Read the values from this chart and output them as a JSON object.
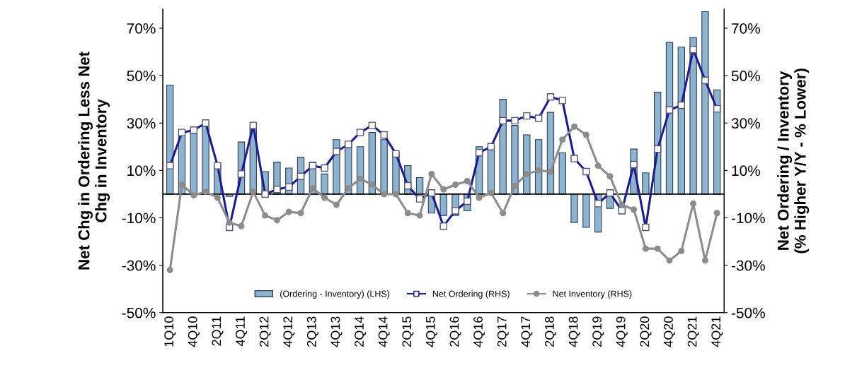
{
  "chart_data": {
    "type": "bar",
    "ylabel": "Net Chg in Ordering Less Net\nChg in Inventory",
    "y2label": "Net Ordering / Inventory\n(% Higher Y/Y - % Lower)",
    "categories": [
      "1Q10",
      null,
      "4Q10",
      null,
      "2Q11",
      null,
      "4Q11",
      null,
      "2Q12",
      null,
      "4Q12",
      null,
      "2Q13",
      null,
      "4Q13",
      null,
      "2Q14",
      null,
      "4Q14",
      null,
      "2Q15",
      null,
      "4Q15",
      null,
      "2Q16",
      null,
      "4Q16",
      null,
      "2Q17",
      null,
      "4Q17",
      null,
      "2Q18",
      null,
      "4Q18",
      null,
      "2Q19",
      null,
      "4Q19",
      null,
      "2Q20",
      null,
      "4Q20",
      null,
      "2Q21",
      null,
      "4Q21"
    ],
    "series": [
      {
        "name": "(Ordering - Inventory) (LHS)",
        "axis": "y",
        "color": "#8fb3cf",
        "values": [
          46,
          27,
          27,
          30,
          12,
          -1,
          22,
          28,
          9.5,
          13.5,
          11,
          15.5,
          13.5,
          8.5,
          23,
          22,
          20,
          26,
          23,
          17.5,
          12,
          7,
          -8,
          -9,
          -9,
          -7,
          20,
          20,
          40,
          29,
          25,
          23,
          34.5,
          17.5,
          -12,
          -14,
          -16,
          -6,
          null,
          19,
          9,
          43,
          64,
          62,
          66,
          77,
          44
        ]
      },
      {
        "name": "Net Ordering (RHS)",
        "type": "line",
        "axis": "y2",
        "color": "#1c1c8a",
        "marker": "square",
        "values": [
          12,
          26,
          27,
          30,
          12,
          -14,
          8.5,
          29,
          0,
          2,
          3,
          7.5,
          12,
          11,
          18,
          21,
          26,
          29,
          25,
          17,
          3.5,
          -2,
          0.5,
          -13.5,
          -7,
          -3,
          17.5,
          20,
          31,
          31,
          33,
          32,
          41,
          39.5,
          15,
          9.5,
          -4,
          0.5,
          -7,
          12.5,
          -14,
          19,
          35.5,
          37.5,
          61,
          48,
          36
        ]
      },
      {
        "name": "Net Inventory (RHS)",
        "type": "line",
        "axis": "y2",
        "color": "#8c8c8c",
        "marker": "circle",
        "values": [
          -32,
          4,
          -0.5,
          1,
          -1.5,
          -12,
          -13.5,
          1,
          -9,
          -11,
          -7.5,
          -8,
          2.5,
          -1.5,
          -4.5,
          2.5,
          6.5,
          4,
          0,
          0,
          -8,
          -9,
          8.5,
          2,
          4,
          5.5,
          -1.5,
          0.5,
          -8,
          3.5,
          8.5,
          10,
          9.5,
          23,
          28.5,
          25,
          12,
          7.5,
          -4.5,
          -6.5,
          -23,
          -23,
          -28,
          -24,
          -4,
          -28,
          -8
        ]
      }
    ],
    "ylim": [
      -50,
      78
    ],
    "yticks": [
      {
        "value": -50,
        "label": "-50%"
      },
      {
        "value": -30,
        "label": "-30%"
      },
      {
        "value": -10,
        "label": "-10%"
      },
      {
        "value": 10,
        "label": "10%"
      },
      {
        "value": 30,
        "label": "30%"
      },
      {
        "value": 50,
        "label": "50%"
      },
      {
        "value": 70,
        "label": "70%"
      }
    ],
    "y2lim": [
      -50,
      78
    ],
    "y2ticks": [
      {
        "value": -50,
        "label": "-50%"
      },
      {
        "value": -30,
        "label": "-30%"
      },
      {
        "value": -10,
        "label": "-10%"
      },
      {
        "value": 10,
        "label": "10%"
      },
      {
        "value": 30,
        "label": "30%"
      },
      {
        "value": 50,
        "label": "50%"
      },
      {
        "value": 70,
        "label": "70%"
      }
    ],
    "ref_lines": [
      {
        "axis": "y",
        "value": 0,
        "color": "#000000",
        "line_style": "solid"
      }
    ],
    "legend": "bottom",
    "grid": false
  }
}
